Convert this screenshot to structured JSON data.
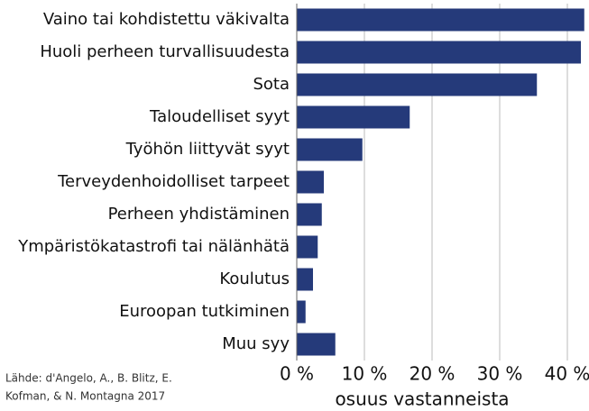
{
  "chart_data": {
    "type": "barh",
    "categories": [
      "Vaino tai kohdistettu väkivalta",
      "Huoli perheen turvallisuudesta",
      "Sota",
      "Taloudelliset syyt",
      "Työhön liittyvät syyt",
      "Terveydenhoidolliset tarpeet",
      "Perheen yhdistäminen",
      "Ympäristökatastrofi tai nälänhätä",
      "Koulutus",
      "Euroopan tutkiminen",
      "Muu syy"
    ],
    "values": [
      42.5,
      42,
      35.5,
      16.7,
      9.7,
      4,
      3.7,
      3.1,
      2.4,
      1.3,
      5.7
    ],
    "color": "#253a7a",
    "xlim": [
      0,
      43
    ],
    "xticks": [
      {
        "value": 0,
        "label": "0 %"
      },
      {
        "value": 10,
        "label": "10 %"
      },
      {
        "value": 20,
        "label": "20 %"
      },
      {
        "value": 30,
        "label": "30 %"
      },
      {
        "value": 40,
        "label": "40 %"
      }
    ],
    "grid": true,
    "xlabel": "osuus vastanneista",
    "source": [
      "Lähde: d'Angelo, A., B. Blitz, E.",
      "Kofman, & N. Montagna 2017"
    ]
  }
}
